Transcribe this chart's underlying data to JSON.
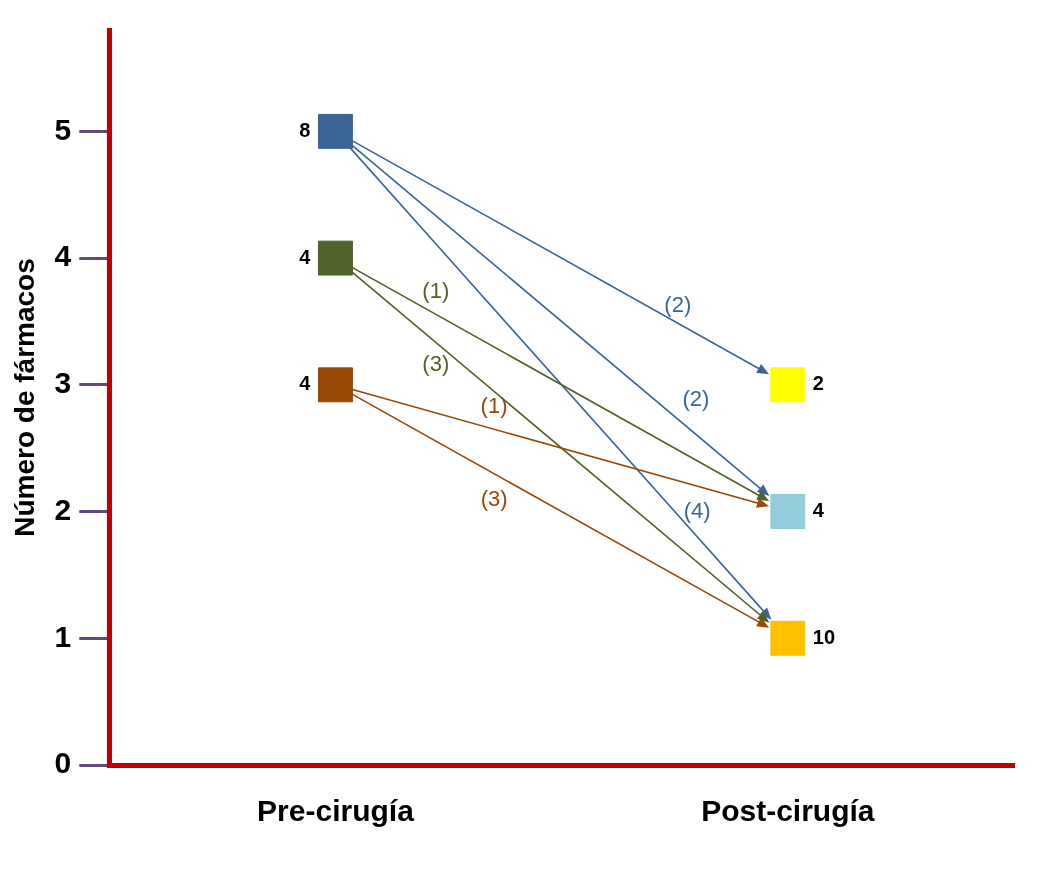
{
  "chart_data": {
    "type": "scatter",
    "ylabel": "Número de fármacos",
    "categories": [
      "Pre-cirugía",
      "Post-cirugía"
    ],
    "ylim": [
      0,
      5.8
    ],
    "yticks": [
      0,
      1,
      2,
      3,
      4,
      5
    ],
    "grid": false,
    "legend": false,
    "marker": "square",
    "series": [
      {
        "color": "#3a6596",
        "values": [
          5,
          null
        ]
      },
      {
        "color": "#4f6228",
        "values": [
          4,
          null
        ]
      },
      {
        "color": "#984807",
        "values": [
          3,
          null
        ]
      },
      {
        "color": "#ffff00",
        "values": [
          null,
          3
        ]
      },
      {
        "color": "#93cddd",
        "values": [
          null,
          2
        ]
      },
      {
        "color": "#ffc000",
        "values": [
          null,
          1
        ]
      }
    ],
    "annotations": [
      {
        "text": "8",
        "x": "Pre-cirugía",
        "y": 5
      },
      {
        "text": "4",
        "x": "Pre-cirugía",
        "y": 4
      },
      {
        "text": "4",
        "x": "Pre-cirugía",
        "y": 3
      },
      {
        "text": "2",
        "x": "Post-cirugía",
        "y": 3
      },
      {
        "text": "4",
        "x": "Post-cirugía",
        "y": 2
      },
      {
        "text": "10",
        "x": "Post-cirugía",
        "y": 1
      },
      "(2)",
      "(2)",
      "(4)",
      "(1)",
      "(3)",
      "(1)",
      "(3)"
    ]
  }
}
